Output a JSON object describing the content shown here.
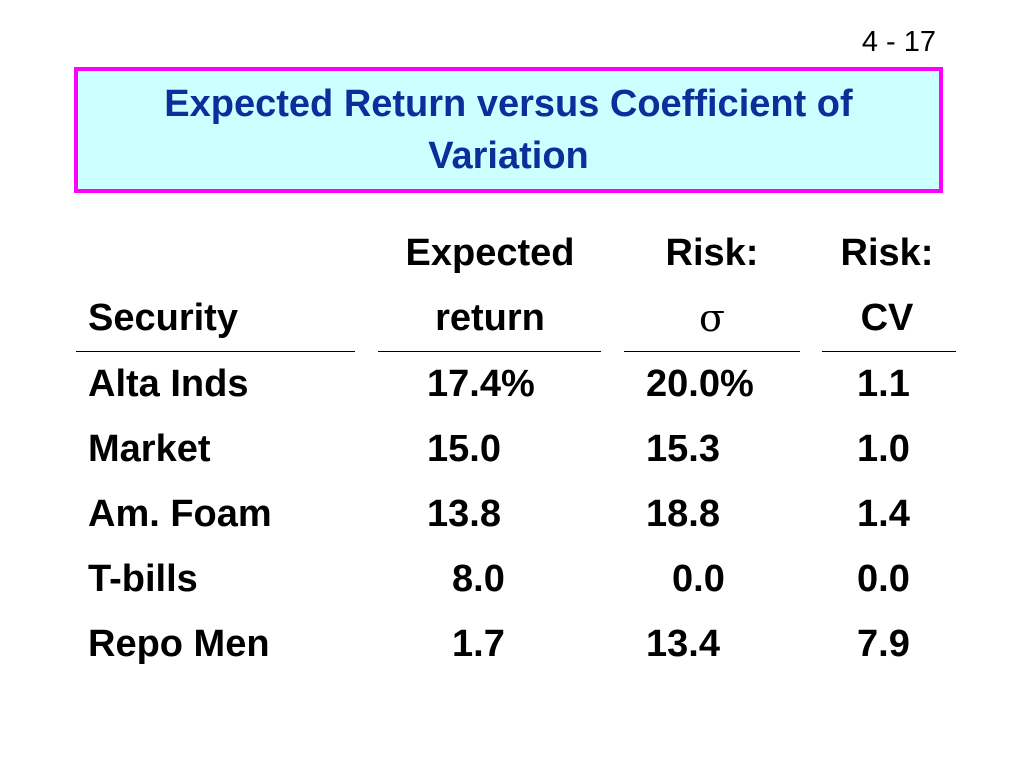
{
  "page_number": "4 - 17",
  "title": "Expected Return versus Coefficient of Variation",
  "table": {
    "headers": {
      "security": "Security",
      "expected_line1": "Expected",
      "expected_line2": "return",
      "risk_sigma_line1": "Risk:",
      "risk_sigma_line2": "σ",
      "risk_cv_line1": "Risk:",
      "risk_cv_line2": "CV"
    },
    "rows": [
      {
        "security": "Alta Inds",
        "expected": "17.4%",
        "sigma": "20.0%",
        "cv": "1.1"
      },
      {
        "security": "Market",
        "expected": "15.0",
        "sigma": "15.3",
        "cv": "1.0"
      },
      {
        "security": "Am. Foam",
        "expected": "13.8",
        "sigma": "18.8",
        "cv": "1.4"
      },
      {
        "security": "T-bills",
        "expected": "8.0",
        "sigma": "0.0",
        "cv": "0.0"
      },
      {
        "security": "Repo Men",
        "expected": "1.7",
        "sigma": "13.4",
        "cv": "7.9"
      }
    ]
  },
  "colors": {
    "title_text": "#0a2e9a",
    "title_background": "#ccffff",
    "title_border": "#ff00ff"
  }
}
